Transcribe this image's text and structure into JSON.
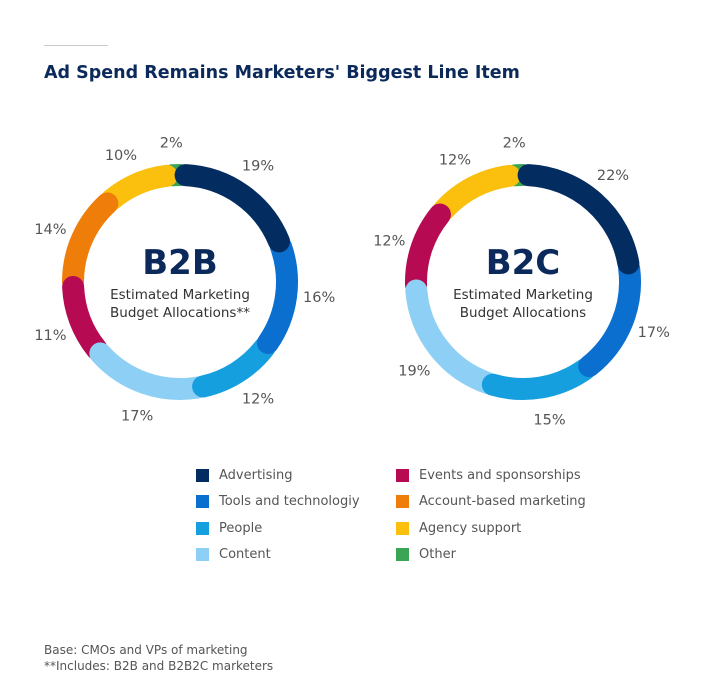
{
  "title": "Ad Spend Remains Marketers' Biggest Line Item",
  "chart_data": [
    {
      "type": "pie",
      "variant": "donut",
      "center_title": "B2B",
      "center_subtitle": [
        "Estimated Marketing",
        "Budget Allocations**"
      ],
      "categories": [
        "Advertising",
        "Tools and technologiy",
        "People",
        "Content",
        "Events and sponsorships",
        "Account-based marketing",
        "Agency support",
        "Other"
      ],
      "values": [
        19,
        16,
        12,
        17,
        11,
        14,
        10,
        2
      ]
    },
    {
      "type": "pie",
      "variant": "donut",
      "center_title": "B2C",
      "center_subtitle": [
        "Estimated Marketing",
        "Budget Allocations"
      ],
      "categories": [
        "Advertising",
        "Tools and technologiy",
        "People",
        "Content",
        "Events and sponsorships",
        "Agency support",
        "Other"
      ],
      "values": [
        22,
        17,
        15,
        19,
        12,
        12,
        2
      ]
    }
  ],
  "legend": [
    {
      "label": "Advertising",
      "color": "#032d60"
    },
    {
      "label": "Tools and technologiy",
      "color": "#0b6fd0"
    },
    {
      "label": "People",
      "color": "#169fde"
    },
    {
      "label": "Content",
      "color": "#8ed0f5"
    },
    {
      "label": "Events and sponsorships",
      "color": "#b60b52"
    },
    {
      "label": "Account-based marketing",
      "color": "#ee7d0a"
    },
    {
      "label": "Agency support",
      "color": "#fbbf0e"
    },
    {
      "label": "Other",
      "color": "#3aa655"
    }
  ],
  "footnotes": [
    "Base: CMOs and VPs of marketing",
    "**Includes: B2B and B2B2C marketers"
  ]
}
